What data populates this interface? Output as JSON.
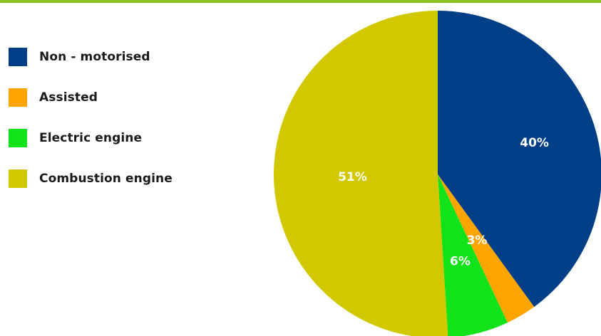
{
  "colors": {
    "top_bar": "#8cc21f"
  },
  "chart_data": {
    "type": "pie",
    "title": "",
    "legend_position": "left",
    "slices": [
      {
        "label": "Non - motorised",
        "value": 40,
        "display": "40%",
        "color": "#003f87"
      },
      {
        "label": "Assisted",
        "value": 3,
        "display": "3%",
        "color": "#ffa500"
      },
      {
        "label": "Electric engine",
        "value": 6,
        "display": "6%",
        "color": "#12e21a"
      },
      {
        "label": "Combustion engine",
        "value": 51,
        "display": "51%",
        "color": "#d2c800"
      }
    ]
  }
}
